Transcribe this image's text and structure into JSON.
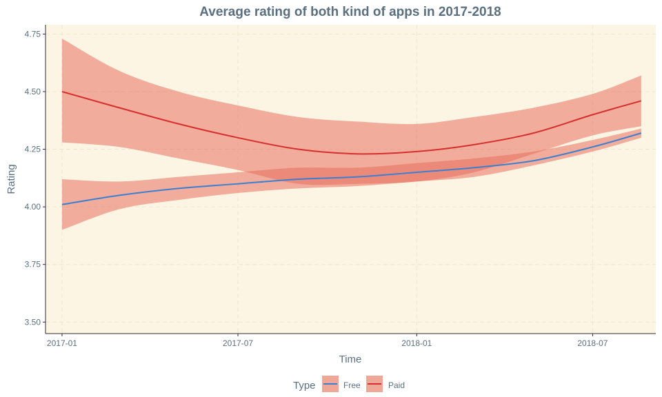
{
  "colors": {
    "panel_bg": "#fcf5e4",
    "grid": "#efe6cf",
    "axis": "#2b2b2b",
    "text": "#5a6f7f",
    "band_fill": "#e8705f",
    "free_line": "#3a7fd0",
    "paid_line": "#d42e2e",
    "legend_key_bg": "#efa898"
  },
  "chart_data": {
    "type": "line",
    "title": "Average rating of both kind of apps in 2017-2018",
    "xlabel": "Time",
    "ylabel": "Rating",
    "x_ticks": [
      "2017-01",
      "2017-07",
      "2018-01",
      "2018-07"
    ],
    "y_ticks": [
      "3.50",
      "3.75",
      "4.00",
      "4.25",
      "4.50",
      "4.75"
    ],
    "ylim": [
      3.45,
      4.79
    ],
    "xlim": [
      "2016-12-15",
      "2018-09-04"
    ],
    "grid": true,
    "legend": {
      "title": "Type",
      "position": "bottom",
      "entries": [
        "Free",
        "Paid"
      ]
    },
    "x": [
      "2017-01-01",
      "2017-03-01",
      "2017-05-01",
      "2017-07-01",
      "2017-09-01",
      "2017-11-01",
      "2018-01-01",
      "2018-03-01",
      "2018-05-01",
      "2018-07-01",
      "2018-08-20"
    ],
    "series": [
      {
        "name": "Free",
        "values": [
          4.01,
          4.05,
          4.08,
          4.1,
          4.12,
          4.13,
          4.15,
          4.17,
          4.2,
          4.26,
          4.32
        ],
        "lower": [
          3.9,
          3.99,
          4.03,
          4.06,
          4.08,
          4.09,
          4.11,
          4.13,
          4.18,
          4.24,
          4.3
        ],
        "upper": [
          4.12,
          4.11,
          4.13,
          4.15,
          4.17,
          4.17,
          4.19,
          4.21,
          4.24,
          4.29,
          4.34
        ]
      },
      {
        "name": "Paid",
        "values": [
          4.5,
          4.43,
          4.36,
          4.3,
          4.25,
          4.23,
          4.24,
          4.27,
          4.32,
          4.4,
          4.46
        ],
        "lower": [
          4.28,
          4.26,
          4.21,
          4.16,
          4.1,
          4.1,
          4.11,
          4.15,
          4.23,
          4.31,
          4.35
        ],
        "upper": [
          4.73,
          4.59,
          4.5,
          4.44,
          4.39,
          4.37,
          4.36,
          4.39,
          4.43,
          4.49,
          4.57
        ]
      }
    ]
  }
}
